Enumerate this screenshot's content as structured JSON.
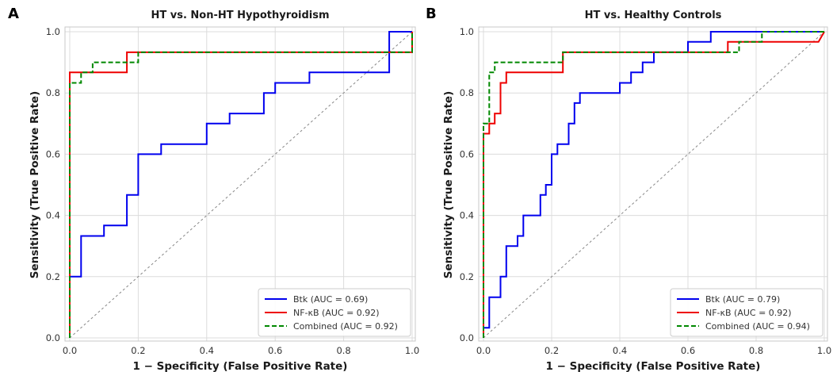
{
  "chart_data": [
    {
      "type": "line",
      "panel": "A",
      "title": "HT vs. Non-HT Hypothyroidism",
      "xlabel": "1 − Specificity (False Positive Rate)",
      "ylabel": "Sensitivity (True Positive Rate)",
      "xlim": [
        0,
        1
      ],
      "ylim": [
        0,
        1
      ],
      "xticks": [
        "0.0",
        "0.2",
        "0.4",
        "0.6",
        "0.8",
        "1.0"
      ],
      "yticks": [
        "0.0",
        "0.2",
        "0.4",
        "0.6",
        "0.8",
        "1.0"
      ],
      "grid": true,
      "legend_position": "lower-right",
      "diagonal": true,
      "series": [
        {
          "name": "Btk (AUC = 0.69)",
          "color": "#0000ee",
          "dash": "solid",
          "points": [
            [
              0,
              0
            ],
            [
              0,
              0.2
            ],
            [
              0.033,
              0.2
            ],
            [
              0.033,
              0.333
            ],
            [
              0.1,
              0.333
            ],
            [
              0.1,
              0.367
            ],
            [
              0.167,
              0.367
            ],
            [
              0.167,
              0.467
            ],
            [
              0.2,
              0.467
            ],
            [
              0.2,
              0.6
            ],
            [
              0.267,
              0.6
            ],
            [
              0.267,
              0.633
            ],
            [
              0.4,
              0.633
            ],
            [
              0.4,
              0.7
            ],
            [
              0.467,
              0.7
            ],
            [
              0.467,
              0.733
            ],
            [
              0.567,
              0.733
            ],
            [
              0.567,
              0.8
            ],
            [
              0.6,
              0.8
            ],
            [
              0.6,
              0.833
            ],
            [
              0.7,
              0.833
            ],
            [
              0.7,
              0.867
            ],
            [
              0.933,
              0.867
            ],
            [
              0.933,
              1.0
            ],
            [
              1.0,
              1.0
            ]
          ]
        },
        {
          "name": "NF-κB (AUC = 0.92)",
          "color": "#ee0000",
          "dash": "solid",
          "points": [
            [
              0,
              0
            ],
            [
              0,
              0.867
            ],
            [
              0.167,
              0.867
            ],
            [
              0.167,
              0.933
            ],
            [
              1.0,
              0.933
            ],
            [
              1.0,
              1.0
            ]
          ]
        },
        {
          "name": "Combined (AUC = 0.92)",
          "color": "#008800",
          "dash": "dashed",
          "points": [
            [
              0,
              0
            ],
            [
              0,
              0.833
            ],
            [
              0.033,
              0.833
            ],
            [
              0.033,
              0.867
            ],
            [
              0.067,
              0.867
            ],
            [
              0.067,
              0.9
            ],
            [
              0.2,
              0.9
            ],
            [
              0.2,
              0.933
            ],
            [
              1.0,
              0.933
            ],
            [
              1.0,
              1.0
            ]
          ]
        }
      ]
    },
    {
      "type": "line",
      "panel": "B",
      "title": "HT vs. Healthy Controls",
      "xlabel": "1 − Specificity (False Positive Rate)",
      "ylabel": "Sensitivity (True Positive Rate)",
      "xlim": [
        0,
        1
      ],
      "ylim": [
        0,
        1
      ],
      "xticks": [
        "0.0",
        "0.2",
        "0.4",
        "0.6",
        "0.8",
        "1.0"
      ],
      "yticks": [
        "0.0",
        "0.2",
        "0.4",
        "0.6",
        "0.8",
        "1.0"
      ],
      "grid": true,
      "legend_position": "lower-right",
      "diagonal": true,
      "series": [
        {
          "name": "Btk (AUC = 0.79)",
          "color": "#0000ee",
          "dash": "solid",
          "points": [
            [
              0,
              0
            ],
            [
              0,
              0.033
            ],
            [
              0.017,
              0.033
            ],
            [
              0.017,
              0.133
            ],
            [
              0.05,
              0.133
            ],
            [
              0.05,
              0.2
            ],
            [
              0.067,
              0.2
            ],
            [
              0.067,
              0.3
            ],
            [
              0.1,
              0.3
            ],
            [
              0.1,
              0.333
            ],
            [
              0.117,
              0.333
            ],
            [
              0.117,
              0.4
            ],
            [
              0.167,
              0.4
            ],
            [
              0.167,
              0.467
            ],
            [
              0.183,
              0.467
            ],
            [
              0.183,
              0.5
            ],
            [
              0.2,
              0.5
            ],
            [
              0.2,
              0.6
            ],
            [
              0.217,
              0.6
            ],
            [
              0.217,
              0.633
            ],
            [
              0.25,
              0.633
            ],
            [
              0.25,
              0.7
            ],
            [
              0.267,
              0.7
            ],
            [
              0.267,
              0.767
            ],
            [
              0.283,
              0.767
            ],
            [
              0.283,
              0.8
            ],
            [
              0.4,
              0.8
            ],
            [
              0.4,
              0.833
            ],
            [
              0.433,
              0.833
            ],
            [
              0.433,
              0.867
            ],
            [
              0.467,
              0.867
            ],
            [
              0.467,
              0.9
            ],
            [
              0.5,
              0.9
            ],
            [
              0.5,
              0.933
            ],
            [
              0.6,
              0.933
            ],
            [
              0.6,
              0.967
            ],
            [
              0.667,
              0.967
            ],
            [
              0.667,
              1.0
            ],
            [
              1.0,
              1.0
            ]
          ]
        },
        {
          "name": "NF-κB (AUC = 0.92)",
          "color": "#ee0000",
          "dash": "solid",
          "points": [
            [
              0,
              0
            ],
            [
              0,
              0.667
            ],
            [
              0.017,
              0.667
            ],
            [
              0.017,
              0.7
            ],
            [
              0.033,
              0.7
            ],
            [
              0.033,
              0.733
            ],
            [
              0.05,
              0.733
            ],
            [
              0.05,
              0.833
            ],
            [
              0.067,
              0.833
            ],
            [
              0.067,
              0.867
            ],
            [
              0.233,
              0.867
            ],
            [
              0.233,
              0.933
            ],
            [
              0.717,
              0.933
            ],
            [
              0.717,
              0.967
            ],
            [
              0.983,
              0.967
            ],
            [
              1.0,
              1.0
            ]
          ]
        },
        {
          "name": "Combined (AUC = 0.94)",
          "color": "#008800",
          "dash": "dashed",
          "points": [
            [
              0,
              0
            ],
            [
              0,
              0.7
            ],
            [
              0.017,
              0.7
            ],
            [
              0.017,
              0.867
            ],
            [
              0.033,
              0.867
            ],
            [
              0.033,
              0.9
            ],
            [
              0.233,
              0.9
            ],
            [
              0.233,
              0.933
            ],
            [
              0.75,
              0.933
            ],
            [
              0.75,
              0.967
            ],
            [
              0.817,
              0.967
            ],
            [
              0.817,
              1.0
            ],
            [
              1.0,
              1.0
            ]
          ]
        }
      ]
    }
  ]
}
